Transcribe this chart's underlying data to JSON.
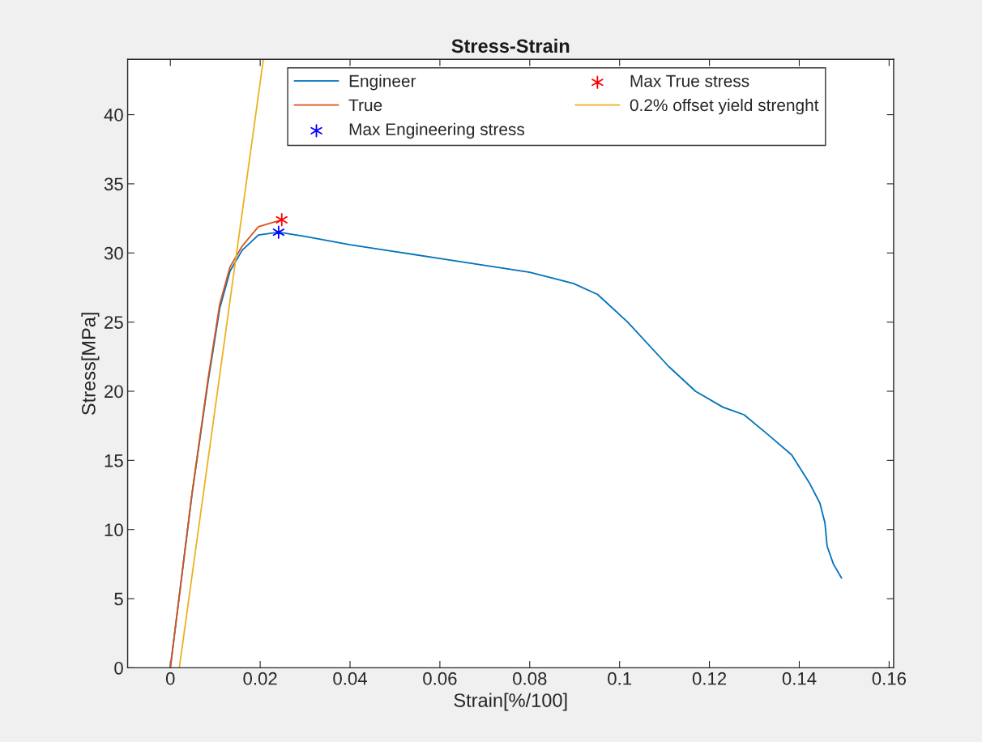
{
  "chart_data": {
    "type": "line",
    "title": "Stress-Strain",
    "xlabel": "Strain[%/100]",
    "ylabel": "Stress[MPa]",
    "xlim": [
      -0.0095,
      0.161
    ],
    "ylim": [
      0,
      44
    ],
    "xticks": [
      0,
      0.02,
      0.04,
      0.06,
      0.08,
      0.1,
      0.12,
      0.14,
      0.16
    ],
    "yticks": [
      0,
      5,
      10,
      15,
      20,
      25,
      30,
      35,
      40
    ],
    "grid": false,
    "legend": "top",
    "series": [
      {
        "name": "Engineer",
        "color": "#0072bd",
        "x": [
          0,
          0.0048,
          0.0084,
          0.011,
          0.0133,
          0.016,
          0.0196,
          0.0241,
          0.03,
          0.04,
          0.05,
          0.06,
          0.07,
          0.08,
          0.0897,
          0.0951,
          0.1018,
          0.1109,
          0.1169,
          0.123,
          0.1277,
          0.1329,
          0.1383,
          0.1422,
          0.1446,
          0.1457,
          0.1462,
          0.1476,
          0.1494
        ],
        "values": [
          0,
          12.5,
          20.7,
          26.0,
          28.7,
          30.2,
          31.3,
          31.5,
          31.2,
          30.6,
          30.1,
          29.6,
          29.1,
          28.6,
          27.8,
          27.0,
          25.0,
          21.8,
          20.0,
          18.85,
          18.3,
          16.9,
          15.4,
          13.4,
          11.9,
          10.5,
          8.8,
          7.5,
          6.5
        ]
      },
      {
        "name": "True",
        "color": "#d95319",
        "x": [
          0,
          0.0048,
          0.0084,
          0.011,
          0.0133,
          0.016,
          0.0196,
          0.0248
        ],
        "values": [
          0,
          12.55,
          20.9,
          26.3,
          29.0,
          30.5,
          31.9,
          32.4
        ]
      },
      {
        "name": "Max Engineering stress",
        "type": "scatter",
        "marker": "cross",
        "color": "#0000ff",
        "x": [
          0.0241
        ],
        "values": [
          31.5
        ]
      },
      {
        "name": "Max True stress",
        "type": "scatter",
        "marker": "cross",
        "color": "#ff0000",
        "x": [
          0.0248
        ],
        "values": [
          32.4
        ]
      },
      {
        "name": "0.2% offset yield strenght",
        "color": "#edb120",
        "x": [
          0.002,
          0.0207
        ],
        "values": [
          0,
          44
        ]
      }
    ]
  }
}
